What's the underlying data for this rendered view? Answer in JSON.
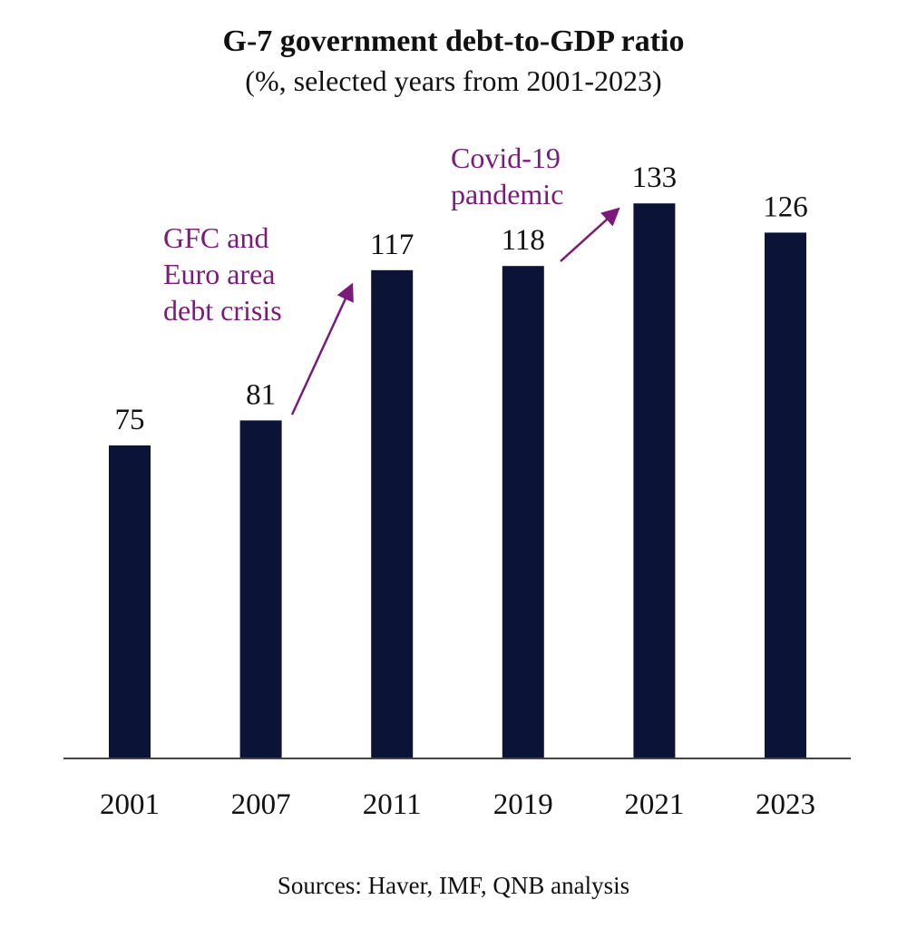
{
  "chart_data": {
    "type": "bar",
    "title": "G-7 government debt-to-GDP ratio",
    "subtitle": "(%, selected years from 2001-2023)",
    "categories": [
      "2001",
      "2007",
      "2011",
      "2019",
      "2021",
      "2023"
    ],
    "values": [
      75,
      81,
      117,
      118,
      133,
      126
    ],
    "data_labels": [
      "75",
      "81",
      "117",
      "118",
      "133",
      "126"
    ],
    "xlabel": "",
    "ylabel": "",
    "ylim": [
      0,
      140
    ],
    "grid": false,
    "legend": "none",
    "annotations": [
      {
        "lines": [
          "GFC and",
          "Euro area",
          "debt crisis"
        ],
        "arrow_from_category": "2007",
        "arrow_to_category": "2011"
      },
      {
        "lines": [
          "Covid-19",
          "pandemic"
        ],
        "arrow_from_category": "2019",
        "arrow_to_category": "2021"
      }
    ],
    "source": "Sources: Haver, IMF, QNB analysis",
    "colors": {
      "bar": "#0b1437",
      "annotation": "#7a1a7a",
      "axis": "#444444",
      "text": "#111111"
    }
  }
}
